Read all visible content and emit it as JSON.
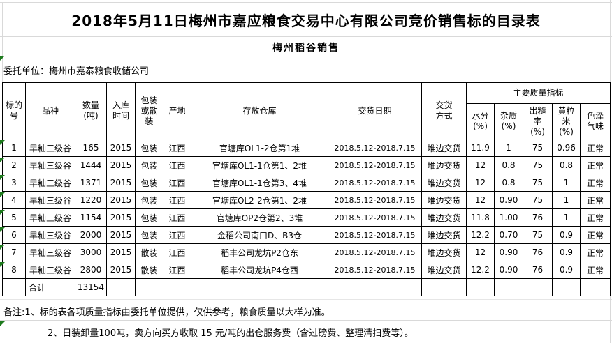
{
  "page": {
    "title": "2018年5月11日梅州市嘉应粮食交易中心有限公司竞价销售标的目录表",
    "subtitle": "梅州稻谷销售",
    "entrust": "委托单位：梅州市嘉泰粮食收储公司"
  },
  "table": {
    "headers": {
      "target_no": "标的\n号",
      "variety": "品种",
      "quantity": "数量\n(吨)",
      "storage_time": "入库\n时间",
      "packing": "包装\n或散\n装",
      "origin": "产地",
      "warehouse": "存放仓库",
      "delivery_date": "交货日期",
      "delivery_mode": "交货\n方式",
      "quality_group": "主要质量指标",
      "moisture": "水分\n(%)",
      "impurity": "杂质\n(%)",
      "brown_rice_rate": "出糙\n率\n(%)",
      "yellow_rice": "黄粒\n米\n(%)",
      "color_odor": "色泽\n气味"
    },
    "rows": [
      [
        "1",
        "早籼三级谷",
        "165",
        "2015",
        "包装",
        "江西",
        "官塘库OL1-2仓第1堆",
        "2018.5.12-2018.7.15",
        "堆边交货",
        "11.9",
        "1",
        "75",
        "0.96",
        "正常"
      ],
      [
        "2",
        "早籼三级谷",
        "1444",
        "2015",
        "包装",
        "江西",
        "官塘库OL1-1仓第1、2堆",
        "2018.5.12-2018.7.15",
        "堆边交货",
        "12",
        "0.8",
        "75",
        "0.8",
        "正常"
      ],
      [
        "3",
        "早籼三级谷",
        "1371",
        "2015",
        "包装",
        "江西",
        "官塘库OL1-1仓第3、4堆",
        "2018.5.12-2018.7.15",
        "堆边交货",
        "12",
        "0.8",
        "75",
        "1",
        "正常"
      ],
      [
        "4",
        "早籼三级谷",
        "1220",
        "2015",
        "包装",
        "江西",
        "官塘库OL2-2仓第1、2堆",
        "2018.5.12-2018.7.15",
        "堆边交货",
        "12",
        "0.90",
        "75",
        "1",
        "正常"
      ],
      [
        "5",
        "早籼三级谷",
        "1154",
        "2015",
        "包装",
        "江西",
        "官塘库OP2仓第2、3堆",
        "2018.5.12-2018.7.15",
        "堆边交货",
        "11.8",
        "1.00",
        "76",
        "1",
        "正常"
      ],
      [
        "6",
        "早籼三级谷",
        "2000",
        "2015",
        "包装",
        "江西",
        "金稻公司南口D、B3仓",
        "2018.5.12-2018.7.15",
        "堆边交货",
        "12.2",
        "0.70",
        "75",
        "0.9",
        "正常"
      ],
      [
        "7",
        "早籼三级谷",
        "3000",
        "2015",
        "散装",
        "江西",
        "稻丰公司龙坑P2仓东",
        "2018.5.12-2018.7.15",
        "堆边交货",
        "12",
        "0.90",
        "76",
        "0.9",
        "正常"
      ],
      [
        "8",
        "早籼三级谷",
        "2800",
        "2015",
        "散装",
        "江西",
        "稻丰公司龙坑P4仓西",
        "2018.5.12-2018.7.15",
        "堆边交货",
        "12.2",
        "0.90",
        "76",
        "0.9",
        "正常"
      ]
    ],
    "total_row": [
      "",
      "合计",
      "13154",
      "",
      "",
      "",
      "",
      "",
      "",
      "",
      "",
      "",
      "",
      ""
    ]
  },
  "notes": {
    "note1": "备注:1、标的表各项质量指标由委托单位提供，仅供参考，粮食质量以大样为准。",
    "note2": "2、日装卸量100吨，卖方向买方收取 15 元/吨的出仓服务费（含过磅费、整理清扫费等）。"
  },
  "colors": {
    "table_border": "#000000",
    "gridline": "#d9d9d9",
    "error_indicator_green": "#1e7b1e",
    "background": "#ffffff",
    "text": "#000000"
  }
}
